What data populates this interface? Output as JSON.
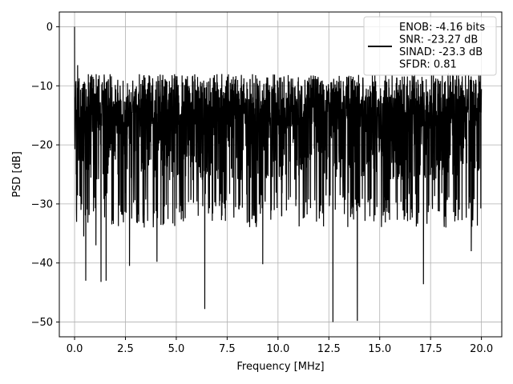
{
  "chart_data": {
    "type": "line",
    "xlabel": "Frequency [MHz]",
    "ylabel": "PSD [dB]",
    "xlim": [
      -0.75,
      21.0
    ],
    "ylim": [
      -52.5,
      2.5
    ],
    "xticks": [
      0.0,
      2.5,
      5.0,
      7.5,
      10.0,
      12.5,
      15.0,
      17.5,
      20.0
    ],
    "xtick_labels": [
      "0.0",
      "2.5",
      "5.0",
      "7.5",
      "10.0",
      "12.5",
      "15.0",
      "17.5",
      "20.0"
    ],
    "yticks": [
      0,
      -10,
      -20,
      -30,
      -40,
      -50
    ],
    "ytick_labels": [
      "0",
      "−10",
      "−20",
      "−30",
      "−40",
      "−50"
    ],
    "grid": true,
    "legend_position": "top-right",
    "series": [
      {
        "name": "ENOB: -4.16 bits\nSNR: -23.27 dB\nSINAD: -23.3 dB\nSFDR: 0.81",
        "color": "#000000",
        "x_range": [
          0.0,
          20.0
        ],
        "noise_envelope_estimate": {
          "upper_db": -7.0,
          "lower_typical_db": -30.0
        },
        "notable_points": [
          {
            "x": 0.0,
            "y": 0.0
          },
          {
            "x": 0.08,
            "y": -25.0
          },
          {
            "x": 0.15,
            "y": -6.5
          },
          {
            "x": 0.3,
            "y": -28.8
          },
          {
            "x": 0.45,
            "y": -35.5
          },
          {
            "x": 0.55,
            "y": -43.0
          },
          {
            "x": 1.05,
            "y": -37.0
          },
          {
            "x": 1.3,
            "y": -43.2
          },
          {
            "x": 1.55,
            "y": -43.0
          },
          {
            "x": 2.7,
            "y": -40.5
          },
          {
            "x": 4.05,
            "y": -39.8
          },
          {
            "x": 6.4,
            "y": -47.8
          },
          {
            "x": 9.25,
            "y": -40.2
          },
          {
            "x": 12.7,
            "y": -50.0
          },
          {
            "x": 13.9,
            "y": -49.8
          },
          {
            "x": 17.15,
            "y": -43.6
          },
          {
            "x": 19.5,
            "y": -38.0
          }
        ]
      }
    ]
  }
}
